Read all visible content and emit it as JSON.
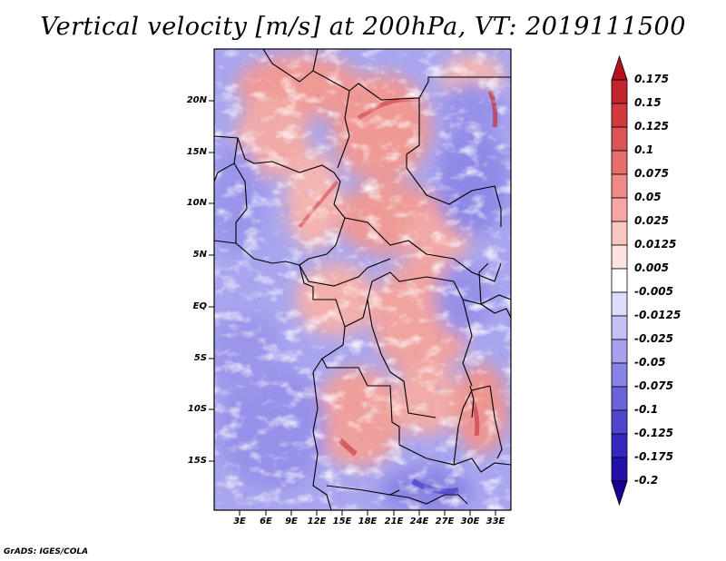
{
  "title": "Vertical velocity [m/s] at 200hPa, VT: 2019111500",
  "credit": "GrADS: IGES/COLA",
  "lat_ticks": [
    "20N",
    "15N",
    "10N",
    "5N",
    "EQ",
    "5S",
    "10S",
    "15S"
  ],
  "lon_ticks": [
    "3E",
    "6E",
    "9E",
    "12E",
    "15E",
    "18E",
    "21E",
    "24E",
    "27E",
    "30E",
    "33E"
  ],
  "colorbar": {
    "labels": [
      "0.175",
      "0.15",
      "0.125",
      "0.1",
      "0.075",
      "0.05",
      "0.025",
      "0.0125",
      "0.005",
      "-0.005",
      "-0.0125",
      "-0.025",
      "-0.05",
      "-0.075",
      "-0.1",
      "-0.125",
      "-0.175",
      "-0.2"
    ],
    "colors": [
      "#b80f1e",
      "#c4252c",
      "#d13b3e",
      "#dc5556",
      "#e66f6c",
      "#ef8a87",
      "#f6a7a4",
      "#fac6c2",
      "#fde3e0",
      "#ffffff",
      "#dedcfb",
      "#c3c0f5",
      "#a5a1ee",
      "#8783e6",
      "#6a64dc",
      "#4f46d0",
      "#3528c0",
      "#2310a8",
      "#1a0090"
    ]
  }
}
